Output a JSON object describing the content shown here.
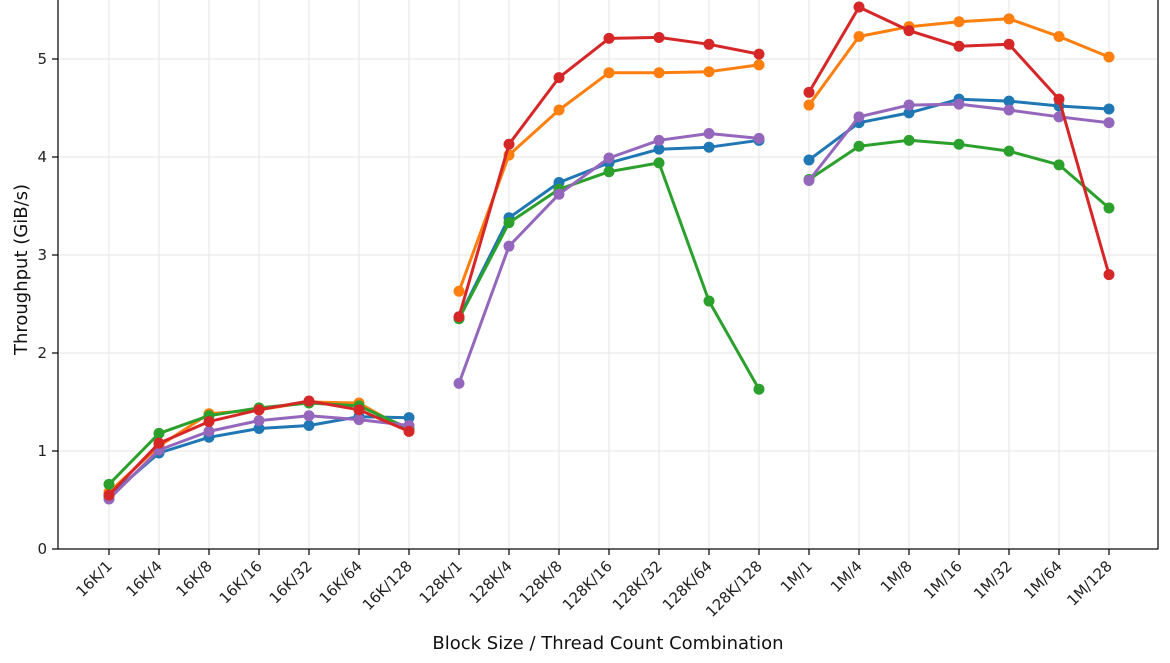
{
  "chart_data": {
    "type": "line",
    "title": "",
    "xlabel": "Block Size / Thread Count Combination",
    "ylabel": "Throughput (GiB/s)",
    "ylim": [
      0,
      5.6
    ],
    "yticks": [
      0,
      1,
      2,
      3,
      4,
      5
    ],
    "grid": true,
    "legend": "none",
    "categories": [
      "16K/1",
      "16K/4",
      "16K/8",
      "16K/16",
      "16K/32",
      "16K/64",
      "16K/128",
      "128K/1",
      "128K/4",
      "128K/8",
      "128K/16",
      "128K/32",
      "128K/64",
      "128K/128",
      "1M/1",
      "1M/4",
      "1M/8",
      "1M/16",
      "1M/32",
      "1M/64",
      "1M/128"
    ],
    "groups": [
      [
        0,
        6
      ],
      [
        7,
        13
      ],
      [
        14,
        20
      ]
    ],
    "series": [
      {
        "color": "#1f77b4",
        "values": [
          0.54,
          0.98,
          1.14,
          1.23,
          1.26,
          1.35,
          1.34,
          2.36,
          3.38,
          3.74,
          3.94,
          4.08,
          4.1,
          4.17,
          3.97,
          4.35,
          4.45,
          4.59,
          4.57,
          4.52,
          4.49
        ]
      },
      {
        "color": "#ff7f0e",
        "values": [
          0.58,
          1.05,
          1.38,
          1.42,
          1.5,
          1.49,
          1.2,
          2.63,
          4.02,
          4.48,
          4.86,
          4.86,
          4.87,
          4.94,
          4.53,
          5.23,
          5.33,
          5.38,
          5.41,
          5.23,
          5.02
        ]
      },
      {
        "color": "#2ca02c",
        "values": [
          0.66,
          1.18,
          1.36,
          1.44,
          1.49,
          1.46,
          1.23,
          2.35,
          3.33,
          3.67,
          3.85,
          3.94,
          2.53,
          1.63,
          3.77,
          4.11,
          4.17,
          4.13,
          4.06,
          3.92,
          3.48
        ]
      },
      {
        "color": "#9467bd",
        "values": [
          0.51,
          1.01,
          1.2,
          1.31,
          1.36,
          1.32,
          1.26,
          1.69,
          3.09,
          3.62,
          3.99,
          4.17,
          4.24,
          4.19,
          3.76,
          4.41,
          4.53,
          4.54,
          4.48,
          4.41,
          4.35
        ]
      },
      {
        "color": "#d62728",
        "values": [
          0.55,
          1.08,
          1.3,
          1.42,
          1.51,
          1.42,
          1.2,
          2.37,
          4.13,
          4.81,
          5.21,
          5.22,
          5.15,
          5.05,
          4.66,
          5.53,
          5.29,
          5.13,
          5.15,
          4.59,
          2.8
        ]
      }
    ]
  }
}
